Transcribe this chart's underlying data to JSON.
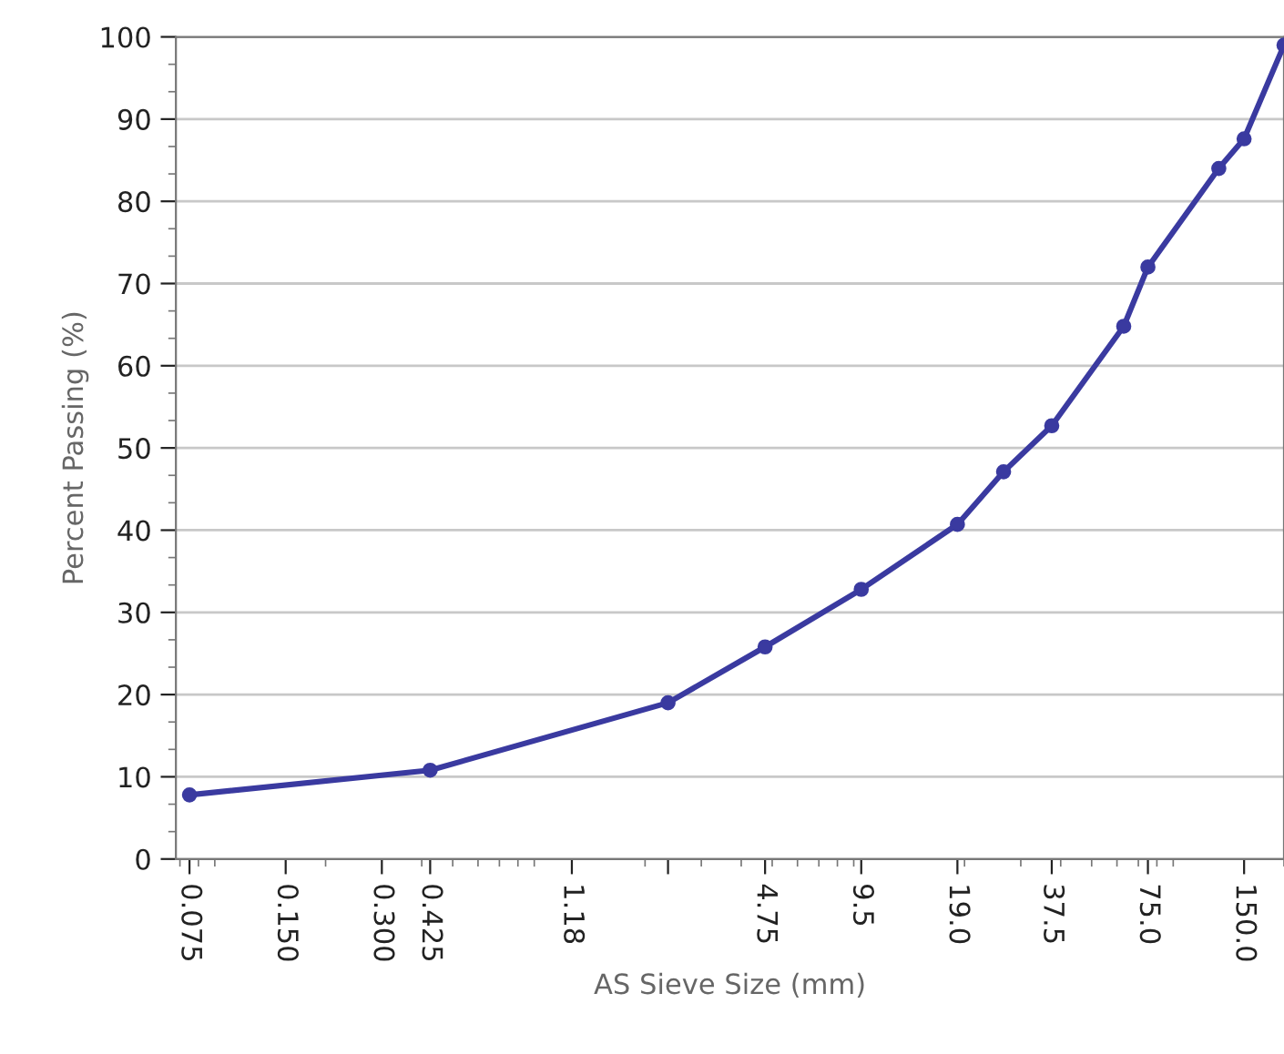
{
  "chart_data": {
    "type": "line",
    "xlabel": "AS Sieve Size (mm)",
    "ylabel": "Percent Passing (%)",
    "log": "x",
    "x": [
      0.075,
      0.425,
      2.36,
      4.75,
      9.5,
      19.0,
      26.5,
      37.5,
      63,
      75,
      125,
      150,
      200
    ],
    "series": [
      {
        "color": "#3a3aa0",
        "values": [
          7.8,
          10.8,
          19.0,
          25.8,
          32.8,
          40.7,
          47.1,
          52.7,
          64.8,
          72.0,
          84.0,
          87.6,
          99
        ]
      }
    ],
    "xlim": [
      0.068,
      200
    ],
    "ylim": [
      0,
      100
    ],
    "xticks": [
      {
        "value": 0.075,
        "label": "0.075"
      },
      {
        "value": 0.15,
        "label": "0.150"
      },
      {
        "value": 0.3,
        "label": "0.300"
      },
      {
        "value": 0.425,
        "label": "0.425"
      },
      {
        "value": 1.18,
        "label": "1.18"
      },
      {
        "value": 2.36,
        "label": null
      },
      {
        "value": 4.75,
        "label": "4.75"
      },
      {
        "value": 9.5,
        "label": "9.5"
      },
      {
        "value": 19.0,
        "label": "19.0"
      },
      {
        "value": 37.5,
        "label": "37.5"
      },
      {
        "value": 75.0,
        "label": "75.0"
      },
      {
        "value": 150.0,
        "label": "150.0"
      }
    ],
    "yticks": [
      0,
      10,
      20,
      30,
      40,
      50,
      60,
      70,
      80,
      90,
      100
    ],
    "grid": "y",
    "marker": "circle",
    "line_style": "solid",
    "legend": false
  }
}
